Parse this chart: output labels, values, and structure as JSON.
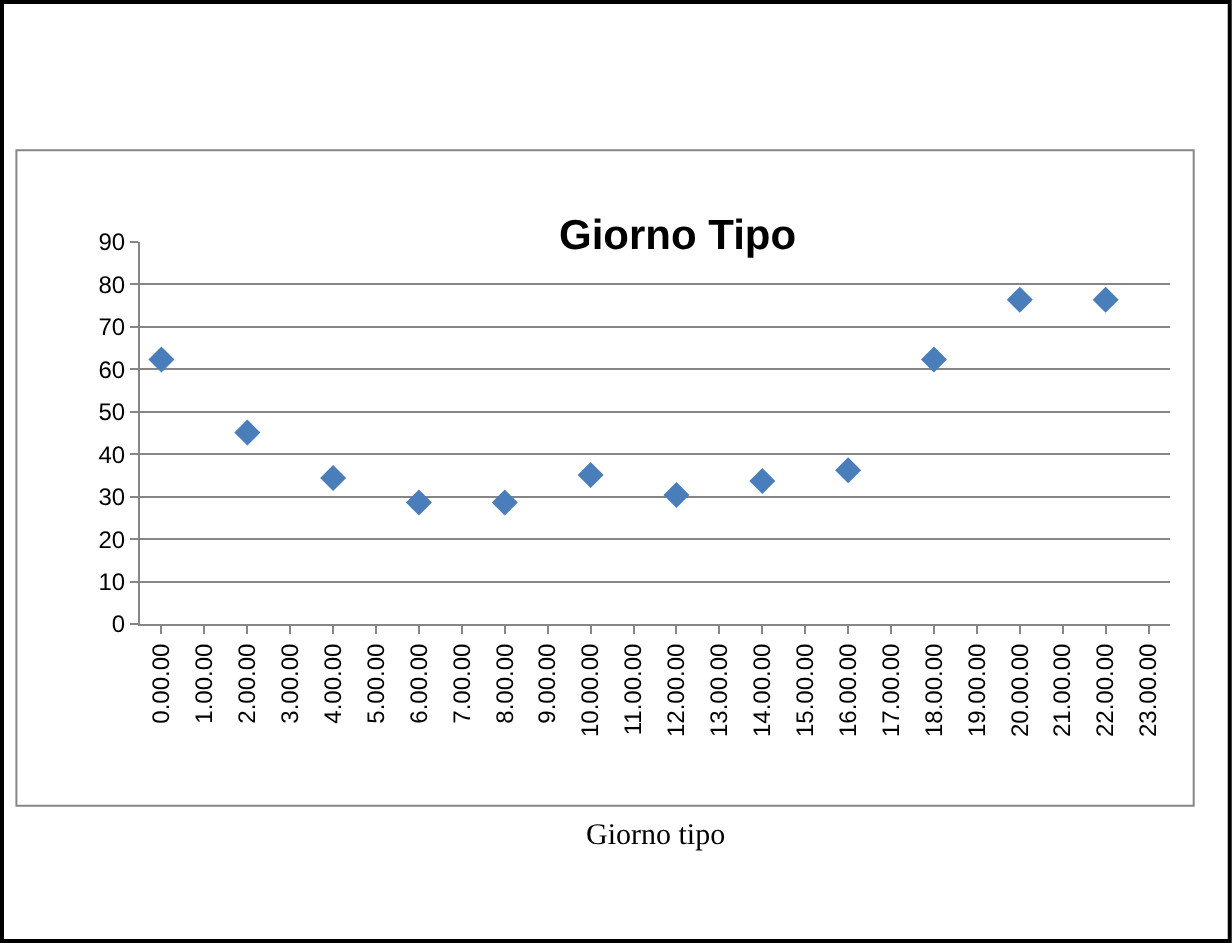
{
  "chart_data": {
    "type": "scatter",
    "title": "Giorno Tipo",
    "xlabel": "Giorno tipo",
    "categories": [
      "0.00.00",
      "1.00.00",
      "2.00.00",
      "3.00.00",
      "4.00.00",
      "5.00.00",
      "6.00.00",
      "7.00.00",
      "8.00.00",
      "9.00.00",
      "10.00.00",
      "11.00.00",
      "12.00.00",
      "13.00.00",
      "14.00.00",
      "15.00.00",
      "16.00.00",
      "17.00.00",
      "18.00.00",
      "19.00.00",
      "20.00.00",
      "21.00.00",
      "22.00.00",
      "23.00.00"
    ],
    "series": [
      {
        "color": "#4a7ebb",
        "values": [
          62.3,
          null,
          45.1,
          null,
          34.4,
          null,
          28.6,
          null,
          28.6,
          null,
          35.1,
          null,
          30.4,
          null,
          33.7,
          null,
          36.2,
          null,
          62.3,
          null,
          76.4,
          null,
          76.4,
          null
        ]
      }
    ],
    "ylim": [
      0,
      90
    ],
    "yticks": [
      0,
      10,
      20,
      30,
      40,
      50,
      60,
      70,
      80,
      90
    ],
    "grid": "y",
    "marker": "diamond"
  }
}
